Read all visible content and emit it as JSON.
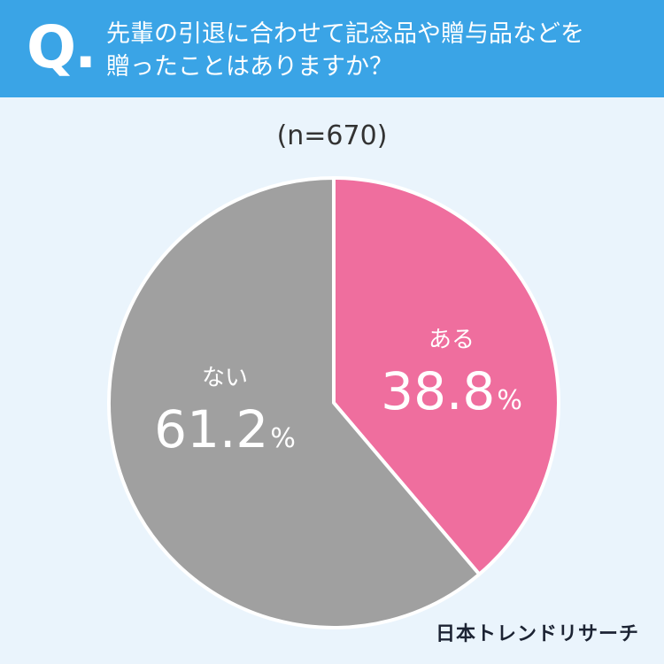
{
  "header": {
    "q_mark": "Q.",
    "question": "先輩の引退に合わせて記念品や贈与品などを\n贈ったことはありますか？"
  },
  "sample_label": "(n=670)",
  "chart_data": {
    "type": "pie",
    "start": "12 o'clock",
    "direction": "clockwise",
    "slices": [
      {
        "label": "ある",
        "value": 38.8,
        "value_text": "38.8",
        "unit": "%",
        "color": "#ef6e9e"
      },
      {
        "label": "ない",
        "value": 61.2,
        "value_text": "61.2",
        "unit": "%",
        "color": "#a0a0a0"
      }
    ]
  },
  "brand": "日本トレンドリサーチ",
  "colors": {
    "header_bg": "#3aa4e6",
    "page_bg": "#eaf4fc"
  }
}
